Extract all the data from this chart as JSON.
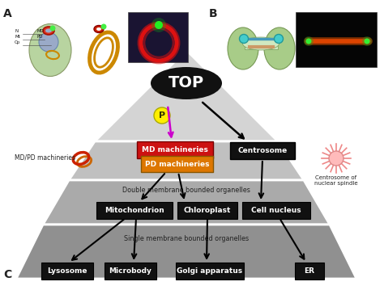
{
  "bg_color": "#ffffff",
  "top_label": "TOP",
  "p_label": "P",
  "md_machineries": "MD machineries",
  "pd_machineries": "PD machineries",
  "centrosome_label": "Centrosome",
  "centrosome_of_nuclear": "Centrosome of\nnuclear spindle",
  "md_pd_machineries": "MD/PD machineries",
  "double_membrane": "Double membrane bounded organelles",
  "single_membrane": "Single membrane bounded organelles",
  "mito": "Mitochondrion",
  "chloro": "Chloroplast",
  "cell_nucleus": "Cell nucleus",
  "lysosome": "Lysosome",
  "microbody": "Microbody",
  "golgi": "Golgi apparatus",
  "er": "ER",
  "label_a": "A",
  "label_b": "B",
  "label_c": "C",
  "pyramid_tier1": "#d4d4d4",
  "pyramid_tier2": "#c0c0c0",
  "pyramid_tier3": "#aaaaaa",
  "pyramid_tier4": "#909090",
  "white_sep": "#ffffff",
  "box_black_fill": "#111111",
  "box_red_fill": "#cc1111",
  "box_orange_fill": "#dd7700",
  "top_ellipse_fill": "#111111",
  "yellow_fill": "#ffee00",
  "magenta": "#cc00cc",
  "star_line": "#ee8888",
  "star_center_fill": "#ffbbbb"
}
